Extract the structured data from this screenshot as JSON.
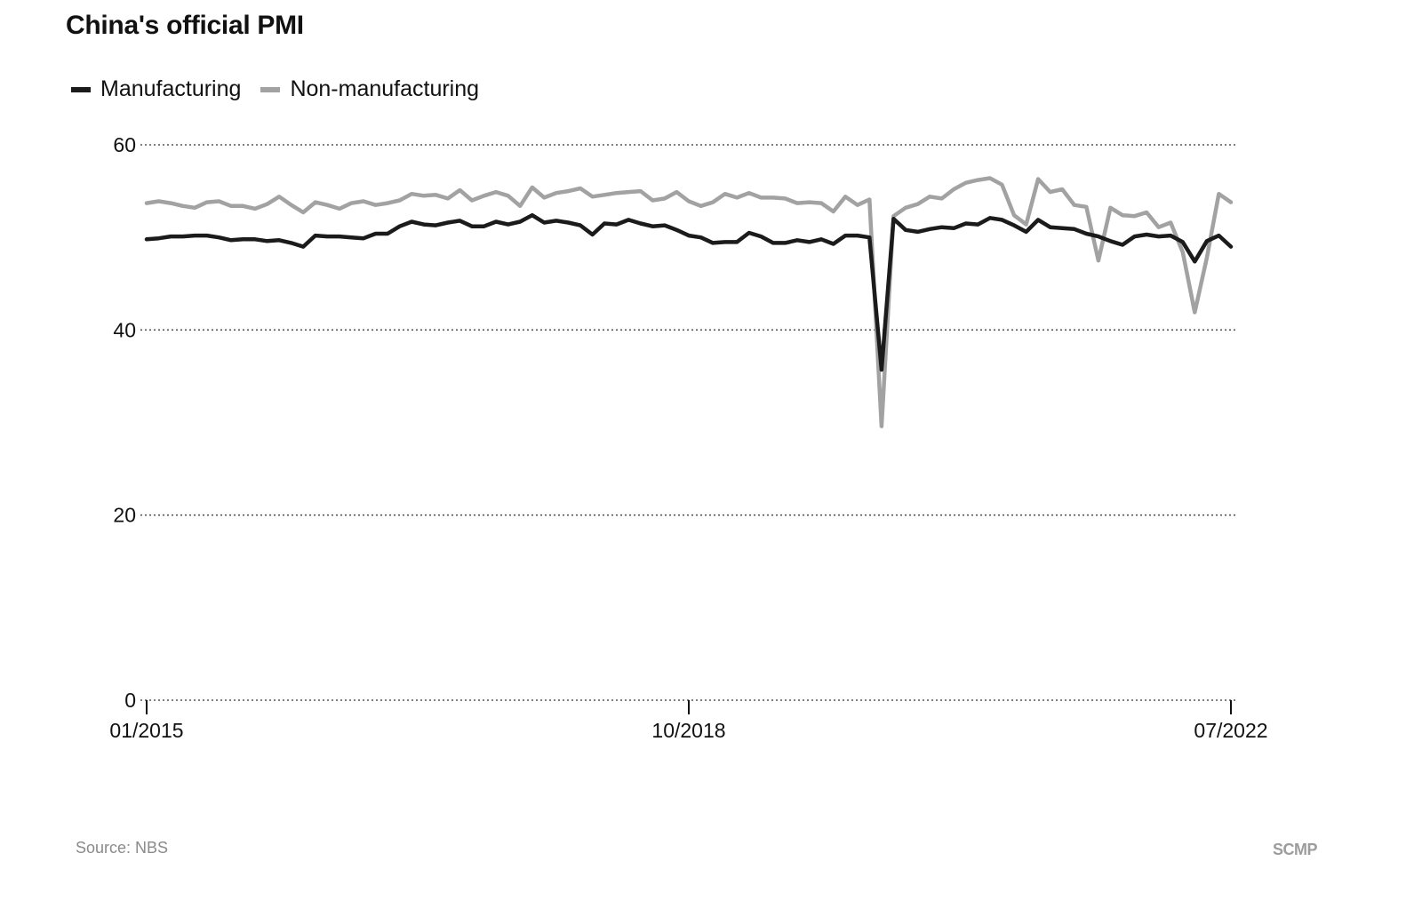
{
  "title": "China's official PMI",
  "source": "Source: NBS",
  "brand": "SCMP",
  "colors": {
    "manufacturing": "#1b1b1b",
    "non_manufacturing": "#a2a2a2",
    "grid": "#555555",
    "text": "#111111"
  },
  "chart_data": {
    "type": "line",
    "title": "China's official PMI",
    "xlabel": "",
    "ylabel": "",
    "ylim": [
      0,
      60
    ],
    "yticks": [
      0,
      20,
      40,
      60
    ],
    "xticks": [
      "01/2015",
      "10/2018",
      "07/2022"
    ],
    "x_start": "01/2015",
    "x_end": "07/2022",
    "x_frequency": "monthly",
    "grid": "horizontal dotted",
    "legend_position": "top-left",
    "series": [
      {
        "name": "Manufacturing",
        "color": "#1b1b1b",
        "values": [
          49.8,
          49.9,
          50.1,
          50.1,
          50.2,
          50.2,
          50.0,
          49.7,
          49.8,
          49.8,
          49.6,
          49.7,
          49.4,
          49.0,
          50.2,
          50.1,
          50.1,
          50.0,
          49.9,
          50.4,
          50.4,
          51.2,
          51.7,
          51.4,
          51.3,
          51.6,
          51.8,
          51.2,
          51.2,
          51.7,
          51.4,
          51.7,
          52.4,
          51.6,
          51.8,
          51.6,
          51.3,
          50.3,
          51.5,
          51.4,
          51.9,
          51.5,
          51.2,
          51.3,
          50.8,
          50.2,
          50.0,
          49.4,
          49.5,
          49.5,
          50.5,
          50.1,
          49.4,
          49.4,
          49.7,
          49.5,
          49.8,
          49.3,
          50.2,
          50.2,
          50.0,
          35.7,
          52.0,
          50.8,
          50.6,
          50.9,
          51.1,
          51.0,
          51.5,
          51.4,
          52.1,
          51.9,
          51.3,
          50.6,
          51.9,
          51.1,
          51.0,
          50.9,
          50.4,
          50.1,
          49.6,
          49.2,
          50.1,
          50.3,
          50.1,
          50.2,
          49.5,
          47.4,
          49.6,
          50.2,
          49.0
        ]
      },
      {
        "name": "Non-manufacturing",
        "color": "#a2a2a2",
        "values": [
          53.7,
          53.9,
          53.7,
          53.4,
          53.2,
          53.8,
          53.9,
          53.4,
          53.4,
          53.1,
          53.6,
          54.4,
          53.5,
          52.7,
          53.8,
          53.5,
          53.1,
          53.7,
          53.9,
          53.5,
          53.7,
          54.0,
          54.7,
          54.5,
          54.6,
          54.2,
          55.1,
          54.0,
          54.5,
          54.9,
          54.5,
          53.4,
          55.4,
          54.3,
          54.8,
          55.0,
          55.3,
          54.4,
          54.6,
          54.8,
          54.9,
          55.0,
          54.0,
          54.2,
          54.9,
          53.9,
          53.4,
          53.8,
          54.7,
          54.3,
          54.8,
          54.3,
          54.3,
          54.2,
          53.7,
          53.8,
          53.7,
          52.8,
          54.4,
          53.5,
          54.1,
          29.6,
          52.3,
          53.2,
          53.6,
          54.4,
          54.2,
          55.2,
          55.9,
          56.2,
          56.4,
          55.7,
          52.4,
          51.4,
          56.3,
          54.9,
          55.2,
          53.5,
          53.3,
          47.5,
          53.2,
          52.4,
          52.3,
          52.7,
          51.1,
          51.6,
          48.4,
          41.9,
          47.8,
          54.7,
          53.8
        ]
      }
    ]
  }
}
